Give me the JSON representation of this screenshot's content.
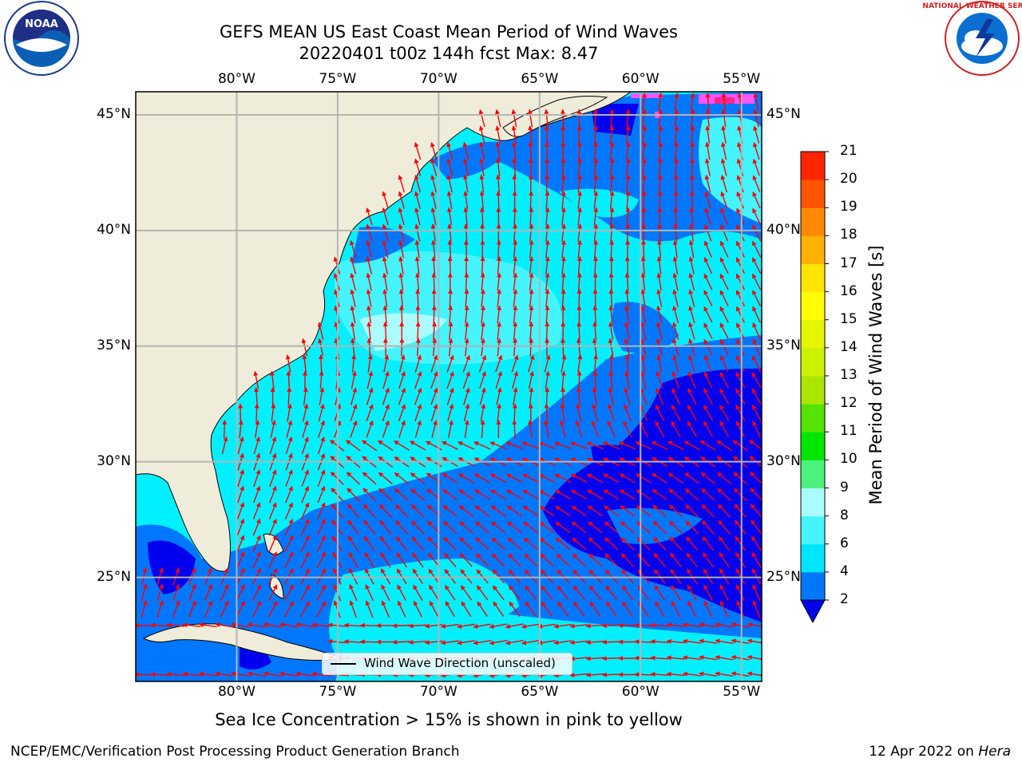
{
  "title": {
    "line1": "GEFS MEAN US East Coast Mean Period of Wind Waves",
    "line2": "20220401 t00z 144h fcst   Max: 8.47"
  },
  "map": {
    "lon_range": [
      -85,
      -54
    ],
    "lat_range": [
      20.5,
      46
    ],
    "lon_ticks": [
      -80,
      -75,
      -70,
      -65,
      -60,
      -55
    ],
    "lat_ticks": [
      45,
      40,
      35,
      30,
      25
    ],
    "lon_labels": [
      "80°W",
      "75°W",
      "70°W",
      "65°W",
      "60°W",
      "55°W"
    ],
    "lat_labels": [
      "45°N",
      "40°N",
      "35°N",
      "30°N",
      "25°N"
    ],
    "grid": true,
    "land_color": "#efedda",
    "arrow_color": "#ff0000"
  },
  "colorbar": {
    "title": "Mean Period of Wind Waves [s]",
    "tick_labels": [
      "2",
      "4",
      "6",
      "8",
      "9",
      "10",
      "11",
      "12",
      "13",
      "14",
      "15",
      "16",
      "17",
      "18",
      "19",
      "20",
      "21"
    ],
    "colors": [
      "#0077ff",
      "#00e5ff",
      "#44f5ff",
      "#aafcff",
      "#4cf27c",
      "#00e600",
      "#55e300",
      "#aae600",
      "#ccf200",
      "#e6f500",
      "#ffff00",
      "#ffe400",
      "#ffb000",
      "#ff8a00",
      "#ff5500",
      "#ff2600"
    ],
    "extend_color": "#0000ee"
  },
  "legend": {
    "label": "Wind Wave Direction (unscaled)"
  },
  "footnote": "Sea Ice Concentration > 15% is shown in pink to yellow",
  "credit_left": "NCEP/EMC/Verification Post Processing Product Generation Branch",
  "credit_date": "12 Apr 2022 on",
  "credit_host": "Hera",
  "logos": {
    "left": "noaa-logo",
    "right": "nws-logo",
    "noaa_text": "NOAA",
    "nws_text": "NATIONAL WEATHER SERVICE"
  }
}
